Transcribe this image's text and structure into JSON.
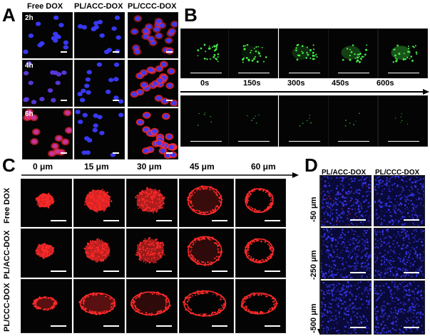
{
  "panels": {
    "a": "A",
    "b": "B",
    "c": "C",
    "d": "D"
  },
  "panel_a": {
    "columns": [
      "Free DOX",
      "PL/ACC-DOX",
      "PL/CCC-DOX"
    ],
    "rows": [
      "2h",
      "4h",
      "6h"
    ]
  },
  "panel_b": {
    "times": [
      "0s",
      "150s",
      "300s",
      "450s",
      "600s"
    ]
  },
  "panel_c": {
    "depths": [
      "0 μm",
      "15 μm",
      "30 μm",
      "45 μm",
      "60 μm"
    ],
    "rows": [
      "Free DOX",
      "PL/ACC-DOX",
      "PL/CCC-DOX"
    ]
  },
  "panel_d": {
    "columns": [
      "PL/ACC-DOX",
      "PL/CCC-DOX"
    ],
    "rows": [
      "-50 μm",
      "-250 μm",
      "-500 μm"
    ]
  },
  "colors": {
    "nuclei": "#3b3bff",
    "dox": "#ff2a2a",
    "green": "#4cff4c",
    "background": "#040404"
  }
}
